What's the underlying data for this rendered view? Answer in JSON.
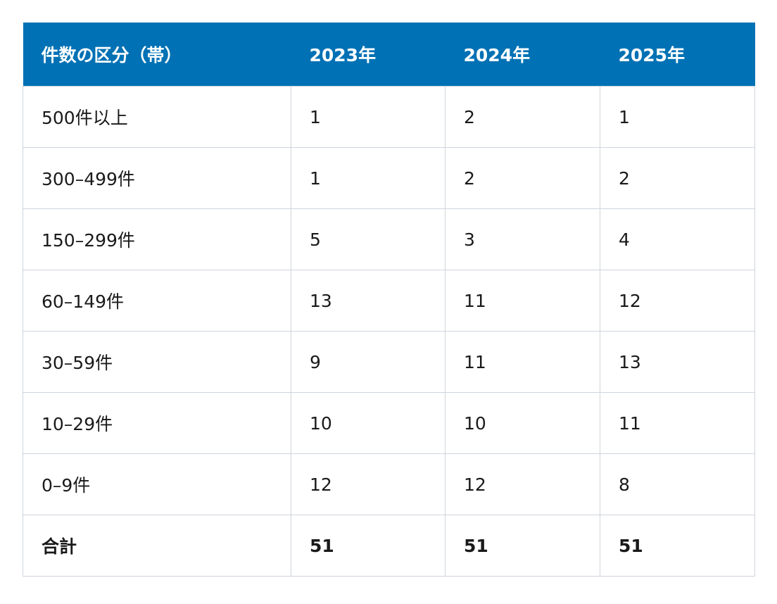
{
  "table": {
    "header": [
      "件数の区分（帯）",
      "2023年",
      "2024年",
      "2025年"
    ],
    "rows": [
      [
        "500件以上",
        1,
        2,
        1
      ],
      [
        "300–499件",
        1,
        2,
        2
      ],
      [
        "150–299件",
        5,
        3,
        4
      ],
      [
        "60–149件",
        13,
        11,
        12
      ],
      [
        "30–59件",
        9,
        11,
        13
      ],
      [
        "10–29件",
        10,
        10,
        11
      ],
      [
        "0–9件",
        12,
        12,
        8
      ],
      [
        "合計",
        51,
        51,
        51
      ]
    ]
  }
}
